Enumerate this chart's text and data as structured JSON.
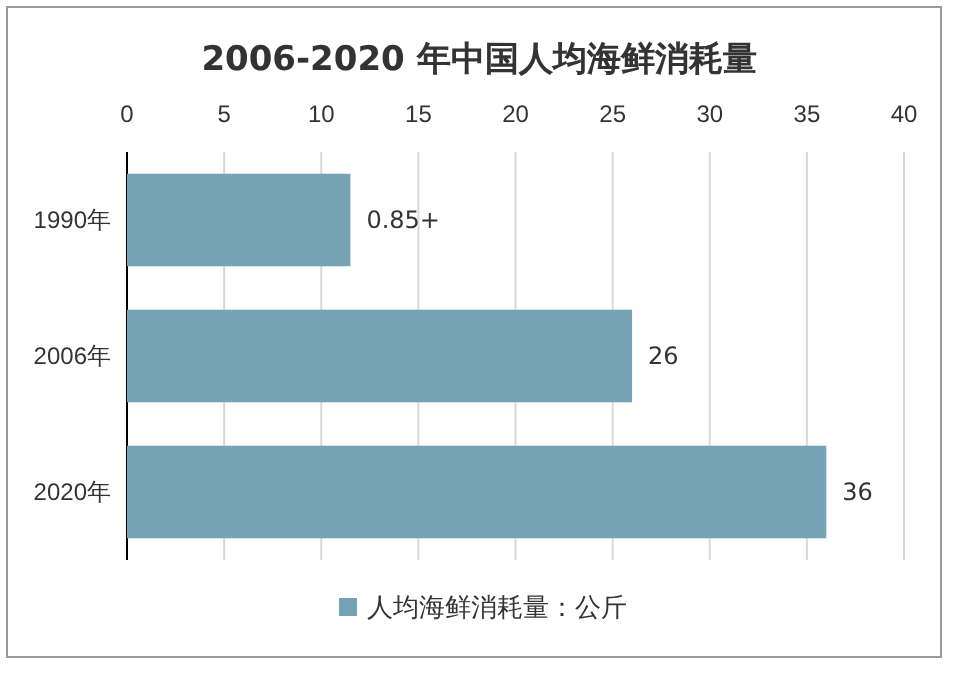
{
  "chart_data": {
    "type": "bar",
    "orientation": "horizontal",
    "title": "2006-2020 年中国人均海鲜消耗量",
    "categories": [
      "1990年",
      "2006年",
      "2020年"
    ],
    "series": [
      {
        "name": "人均海鲜消耗量：公斤",
        "color": "#75a3b5",
        "values": [
          11.5,
          26,
          36
        ]
      }
    ],
    "value_labels": [
      "0.85+",
      "26",
      "36"
    ],
    "xlim": [
      0,
      40
    ],
    "xticks": [
      0,
      5,
      10,
      15,
      20,
      25,
      30,
      35,
      40
    ],
    "grid": "x",
    "legend": "bottom"
  }
}
